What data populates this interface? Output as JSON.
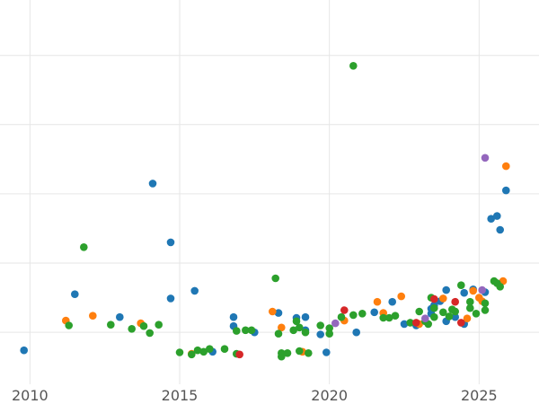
{
  "chart_data": {
    "type": "scatter",
    "title": "",
    "xlabel": "",
    "ylabel": "",
    "xlim": [
      2009.0,
      2027.0
    ],
    "ylim": [
      -0.25,
      5.3
    ],
    "grid": true,
    "legend": "none",
    "x_ticks": [
      {
        "value": 2010,
        "label": "2010"
      },
      {
        "value": 2015,
        "label": "2015"
      },
      {
        "value": 2020,
        "label": "2020"
      },
      {
        "value": 2025,
        "label": "2025"
      }
    ],
    "y_grid_values": [
      0.5,
      1.5,
      2.5,
      3.5,
      4.5
    ],
    "series": [
      {
        "color": "#1f77b4",
        "points": [
          [
            2009.8,
            0.24
          ],
          [
            2011.5,
            1.05
          ],
          [
            2013.0,
            0.72
          ],
          [
            2014.1,
            2.65
          ],
          [
            2014.7,
            1.8
          ],
          [
            2014.7,
            0.99
          ],
          [
            2015.5,
            1.1
          ],
          [
            2016.1,
            0.22
          ],
          [
            2016.8,
            0.72
          ],
          [
            2016.8,
            0.59
          ],
          [
            2017.5,
            0.5
          ],
          [
            2018.3,
            0.78
          ],
          [
            2018.9,
            0.71
          ],
          [
            2019.2,
            0.72
          ],
          [
            2019.2,
            0.53
          ],
          [
            2019.7,
            0.47
          ],
          [
            2019.9,
            0.21
          ],
          [
            2020.9,
            0.5
          ],
          [
            2021.5,
            0.79
          ],
          [
            2022.1,
            0.94
          ],
          [
            2022.5,
            0.62
          ],
          [
            2022.9,
            0.6
          ],
          [
            2023.4,
            0.77
          ],
          [
            2023.4,
            0.84
          ],
          [
            2023.5,
            0.89
          ],
          [
            2023.7,
            0.95
          ],
          [
            2023.9,
            1.11
          ],
          [
            2023.9,
            0.66
          ],
          [
            2024.2,
            0.72
          ],
          [
            2024.5,
            0.62
          ],
          [
            2024.5,
            1.07
          ],
          [
            2024.8,
            1.12
          ],
          [
            2025.2,
            1.08
          ],
          [
            2025.4,
            2.14
          ],
          [
            2025.6,
            2.18
          ],
          [
            2025.7,
            1.98
          ],
          [
            2025.9,
            2.55
          ]
        ]
      },
      {
        "color": "#ff7f0e",
        "points": [
          [
            2011.2,
            0.67
          ],
          [
            2012.1,
            0.74
          ],
          [
            2013.7,
            0.63
          ],
          [
            2015.4,
            0.19
          ],
          [
            2018.1,
            0.8
          ],
          [
            2018.4,
            0.57
          ],
          [
            2019.1,
            0.22
          ],
          [
            2020.5,
            0.67
          ],
          [
            2021.6,
            0.94
          ],
          [
            2021.8,
            0.78
          ],
          [
            2022.4,
            1.02
          ],
          [
            2023.0,
            0.62
          ],
          [
            2023.8,
            0.99
          ],
          [
            2024.6,
            0.7
          ],
          [
            2024.8,
            1.1
          ],
          [
            2025.0,
            1.0
          ],
          [
            2025.1,
            0.95
          ],
          [
            2025.8,
            1.24
          ],
          [
            2025.9,
            2.9
          ]
        ]
      },
      {
        "color": "#2ca02c",
        "points": [
          [
            2011.3,
            0.6
          ],
          [
            2011.8,
            1.73
          ],
          [
            2012.7,
            0.61
          ],
          [
            2013.4,
            0.55
          ],
          [
            2013.8,
            0.59
          ],
          [
            2014.0,
            0.49
          ],
          [
            2014.3,
            0.61
          ],
          [
            2015.0,
            0.21
          ],
          [
            2015.4,
            0.18
          ],
          [
            2015.6,
            0.24
          ],
          [
            2015.8,
            0.22
          ],
          [
            2016.0,
            0.26
          ],
          [
            2016.5,
            0.26
          ],
          [
            2016.9,
            0.52
          ],
          [
            2016.9,
            0.19
          ],
          [
            2017.2,
            0.53
          ],
          [
            2017.4,
            0.53
          ],
          [
            2018.2,
            1.28
          ],
          [
            2018.3,
            0.48
          ],
          [
            2018.4,
            0.2
          ],
          [
            2018.4,
            0.15
          ],
          [
            2018.6,
            0.2
          ],
          [
            2018.8,
            0.53
          ],
          [
            2018.9,
            0.66
          ],
          [
            2019.0,
            0.23
          ],
          [
            2019.0,
            0.57
          ],
          [
            2019.2,
            0.5
          ],
          [
            2019.3,
            0.2
          ],
          [
            2019.7,
            0.6
          ],
          [
            2020.0,
            0.56
          ],
          [
            2020.0,
            0.48
          ],
          [
            2020.4,
            0.72
          ],
          [
            2020.8,
            4.35
          ],
          [
            2020.8,
            0.75
          ],
          [
            2021.1,
            0.77
          ],
          [
            2021.8,
            0.71
          ],
          [
            2022.0,
            0.71
          ],
          [
            2022.2,
            0.74
          ],
          [
            2022.7,
            0.64
          ],
          [
            2023.0,
            0.8
          ],
          [
            2023.2,
            0.66
          ],
          [
            2023.3,
            0.62
          ],
          [
            2023.4,
            1.0
          ],
          [
            2023.5,
            0.85
          ],
          [
            2023.5,
            0.72
          ],
          [
            2023.8,
            0.79
          ],
          [
            2024.0,
            0.73
          ],
          [
            2024.1,
            0.83
          ],
          [
            2024.2,
            0.8
          ],
          [
            2024.4,
            1.18
          ],
          [
            2024.7,
            0.85
          ],
          [
            2024.7,
            0.94
          ],
          [
            2024.9,
            0.77
          ],
          [
            2025.2,
            0.82
          ],
          [
            2025.2,
            0.92
          ],
          [
            2025.5,
            1.24
          ],
          [
            2025.6,
            1.21
          ],
          [
            2025.7,
            1.16
          ]
        ]
      },
      {
        "color": "#d62728",
        "points": [
          [
            2017.0,
            0.18
          ],
          [
            2020.5,
            0.82
          ],
          [
            2022.9,
            0.64
          ],
          [
            2023.5,
            0.98
          ],
          [
            2024.2,
            0.94
          ],
          [
            2024.4,
            0.64
          ]
        ]
      },
      {
        "color": "#9467bd",
        "points": [
          [
            2020.2,
            0.63
          ],
          [
            2023.2,
            0.7
          ],
          [
            2025.1,
            1.11
          ],
          [
            2025.2,
            3.02
          ]
        ]
      }
    ]
  }
}
